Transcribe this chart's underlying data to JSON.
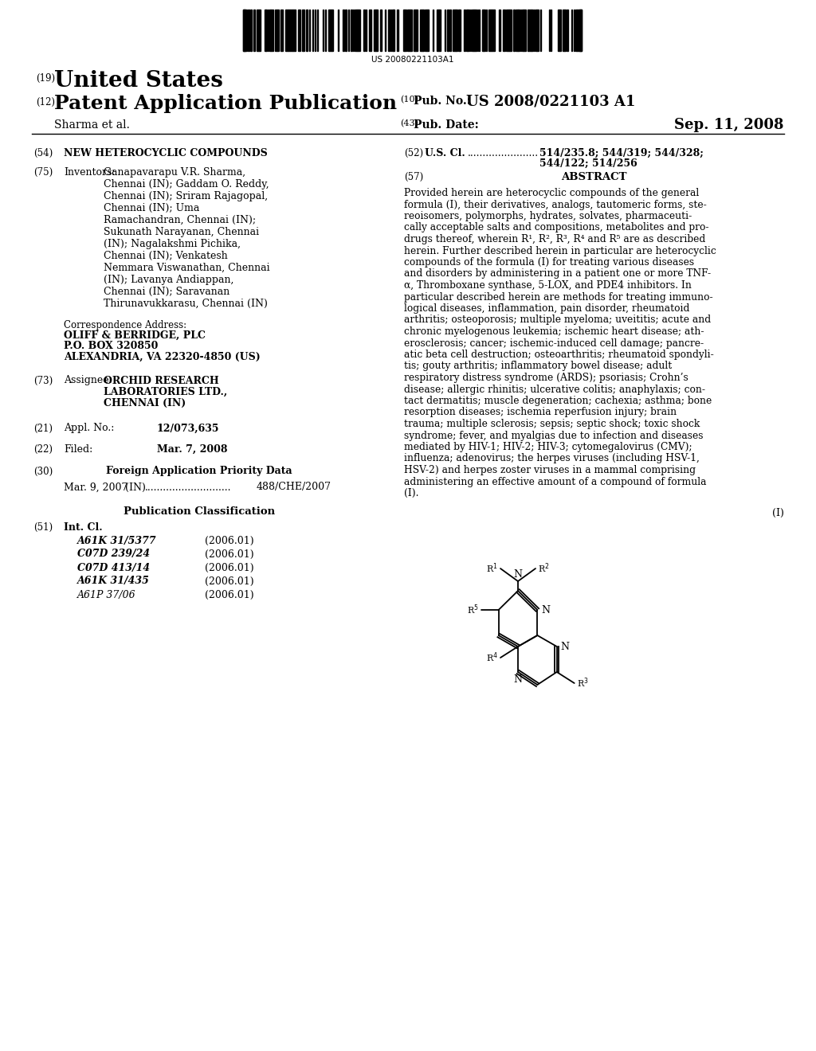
{
  "background_color": "#ffffff",
  "barcode_text": "US 20080221103A1",
  "header": {
    "number_19": "(19)",
    "united_states": "United States",
    "number_12": "(12)",
    "patent_app_pub": "Patent Application Publication",
    "number_10": "(10)",
    "pub_no_label": "Pub. No.:",
    "pub_no_value": "US 2008/0221103 A1",
    "sharma": "Sharma et al.",
    "number_43": "(43)",
    "pub_date_label": "Pub. Date:",
    "pub_date_value": "Sep. 11, 2008"
  },
  "left_col": {
    "field54_num": "(54)",
    "field54_title": "NEW HETEROCYCLIC COMPOUNDS",
    "field75_num": "(75)",
    "field75_label": "Inventors:",
    "inv_lines": [
      "Ganapavarapu V.R. Sharma,",
      "Chennai (IN); Gaddam O. Reddy,",
      "Chennai (IN); Sriram Rajagopal,",
      "Chennai (IN); Uma",
      "Ramachandran, Chennai (IN);",
      "Sukunath Narayanan, Chennai",
      "(IN); Nagalakshmi Pichika,",
      "Chennai (IN); Venkatesh",
      "Nemmara Viswanathan, Chennai",
      "(IN); Lavanya Andiappan,",
      "Chennai (IN); Saravanan",
      "Thirunavukkarasu, Chennai (IN)"
    ],
    "corr_addr_label": "Correspondence Address:",
    "corr_addr_lines": [
      "OLIFF & BERRIDGE, PLC",
      "P.O. BOX 320850",
      "ALEXANDRIA, VA 22320-4850 (US)"
    ],
    "field73_num": "(73)",
    "field73_label": "Assignee:",
    "assignee_lines": [
      "ORCHID RESEARCH",
      "LABORATORIES LTD.,",
      "CHENNAI (IN)"
    ],
    "field21_num": "(21)",
    "field21_label": "Appl. No.:",
    "field21_value": "12/073,635",
    "field22_num": "(22)",
    "field22_label": "Filed:",
    "field22_value": "Mar. 7, 2008",
    "field30_num": "(30)",
    "field30_label": "Foreign Application Priority Data",
    "priority_date": "Mar. 9, 2007",
    "priority_country": "(IN)",
    "priority_dots": "............................",
    "priority_num": "488/CHE/2007",
    "pub_class_label": "Publication Classification",
    "field51_num": "(51)",
    "field51_label": "Int. Cl.",
    "classifications": [
      [
        "A61K 31/5377",
        "(2006.01)",
        "bold_italic"
      ],
      [
        "C07D 239/24",
        "(2006.01)",
        "bold_italic"
      ],
      [
        "C07D 413/14",
        "(2006.01)",
        "bold_italic"
      ],
      [
        "A61K 31/435",
        "(2006.01)",
        "bold_italic"
      ],
      [
        "A61P 37/06",
        "(2006.01)",
        "italic"
      ]
    ]
  },
  "right_col": {
    "field52_num": "(52)",
    "field52_label": "U.S. Cl.",
    "field52_dots": ".......................",
    "field52_value1": "514/235.8; 544/319; 544/328;",
    "field52_value2": "544/122; 514/256",
    "field57_num": "(57)",
    "field57_label": "ABSTRACT",
    "abstract_lines": [
      "Provided herein are heterocyclic compounds of the general",
      "formula (I), their derivatives, analogs, tautomeric forms, ste-",
      "reoisomers, polymorphs, hydrates, solvates, pharmaceuti-",
      "cally acceptable salts and compositions, metabolites and pro-",
      "drugs thereof, wherein R¹, R², R³, R⁴ and R⁵ are as described",
      "herein. Further described herein in particular are heterocyclic",
      "compounds of the formula (I) for treating various diseases",
      "and disorders by administering in a patient one or more TNF-",
      "α, Thromboxane synthase, 5-LOX, and PDE4 inhibitors. In",
      "particular described herein are methods for treating immuno-",
      "logical diseases, inflammation, pain disorder, rheumatoid",
      "arthritis; osteoporosis; multiple myeloma; uveititis; acute and",
      "chronic myelogenous leukemia; ischemic heart disease; ath-",
      "erosclerosis; cancer; ischemic-induced cell damage; pancre-",
      "atic beta cell destruction; osteoarthritis; rheumatoid spondyli-",
      "tis; gouty arthritis; inflammatory bowel disease; adult",
      "respiratory distress syndrome (ARDS); psoriasis; Crohn’s",
      "disease; allergic rhinitis; ulcerative colitis; anaphylaxis; con-",
      "tact dermatitis; muscle degeneration; cachexia; asthma; bone",
      "resorption diseases; ischemia reperfusion injury; brain",
      "trauma; multiple sclerosis; sepsis; septic shock; toxic shock",
      "syndrome; fever, and myalgias due to infection and diseases",
      "mediated by HIV-1; HIV-2; HIV-3; cytomegalovirus (CMV);",
      "influenza; adenovirus; the herpes viruses (including HSV-1,",
      "HSV-2) and herpes zoster viruses in a mammal comprising",
      "administering an effective amount of a compound of formula",
      "(I)."
    ],
    "formula_label": "(I)"
  }
}
